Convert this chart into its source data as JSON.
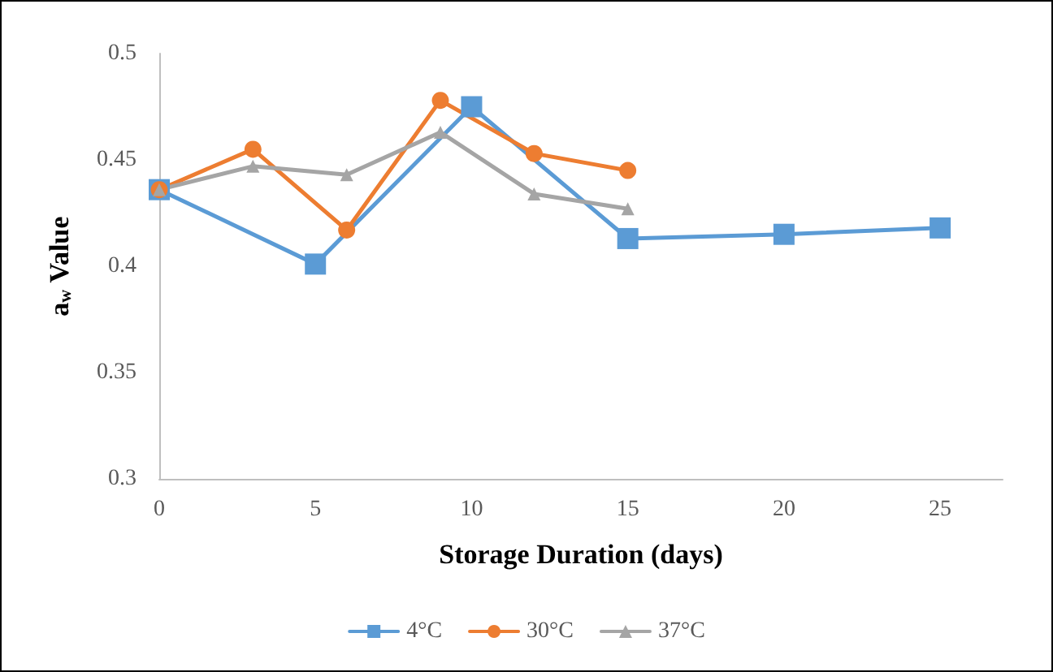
{
  "chart_data": {
    "type": "line",
    "xlabel": "Storage Duration (days)",
    "ylabel": "a$_{w}$ Value",
    "xlim": [
      0,
      27
    ],
    "xticks": [
      0,
      5,
      10,
      15,
      20,
      25
    ],
    "ylim": [
      0.3,
      0.5
    ],
    "yticks": [
      0.3,
      0.35,
      0.4,
      0.45,
      0.5
    ],
    "grid": false,
    "legend": "bottom",
    "line_style": "solid",
    "series": [
      {
        "name": "4°C",
        "color": "#5b9bd5",
        "marker": "square",
        "x": [
          0,
          5,
          10,
          15,
          20,
          25
        ],
        "values": [
          0.436,
          0.401,
          0.475,
          0.413,
          0.415,
          0.418
        ]
      },
      {
        "name": "30°C",
        "color": "#ed7d31",
        "marker": "circle",
        "x": [
          0,
          3,
          6,
          9,
          12,
          15
        ],
        "values": [
          0.436,
          0.455,
          0.417,
          0.478,
          0.453,
          0.445
        ]
      },
      {
        "name": "37°C",
        "color": "#a5a5a5",
        "marker": "triangle",
        "x": [
          0,
          3,
          6,
          9,
          12,
          15
        ],
        "values": [
          0.436,
          0.447,
          0.443,
          0.463,
          0.434,
          0.427
        ]
      }
    ]
  }
}
